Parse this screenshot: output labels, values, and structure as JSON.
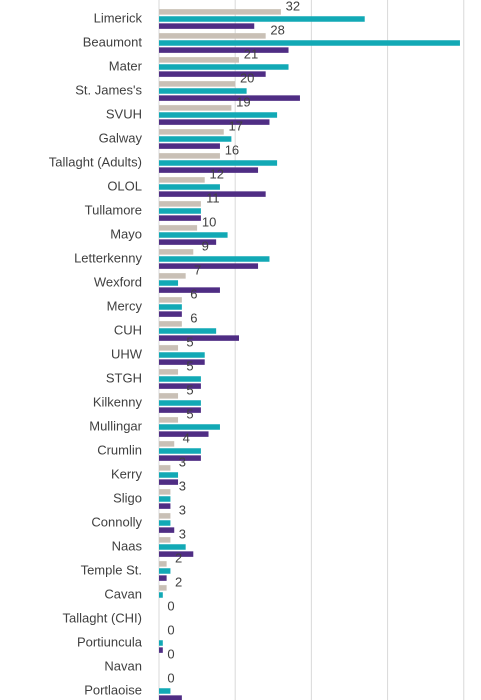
{
  "chart_data": {
    "type": "bar",
    "orientation": "horizontal",
    "categories": [
      "Limerick",
      "Beaumont",
      "Mater",
      "St. James's",
      "SVUH",
      "Galway",
      "Tallaght (Adults)",
      "OLOL",
      "Tullamore",
      "Mayo",
      "Letterkenny",
      "Wexford",
      "Mercy",
      "CUH",
      "UHW",
      "STGH",
      "Kilkenny",
      "Mullingar",
      "Crumlin",
      "Kerry",
      "Sligo",
      "Connolly",
      "Naas",
      "Temple St.",
      "Cavan",
      "Tallaght (CHI)",
      "Portiuncula",
      "Navan",
      "Portlaoise"
    ],
    "series": [
      {
        "color": "#c9c0b6",
        "values": [
          32,
          28,
          21,
          20,
          19,
          17,
          16,
          12,
          11,
          10,
          9,
          7,
          6,
          6,
          5,
          5,
          5,
          5,
          4,
          3,
          3,
          3,
          3,
          2,
          2,
          0,
          0,
          0,
          0
        ],
        "labeled": true
      },
      {
        "color": "#12a9b5",
        "values": [
          54,
          79,
          34,
          23,
          31,
          19,
          31,
          16,
          11,
          18,
          29,
          5,
          6,
          15,
          12,
          11,
          11,
          16,
          11,
          5,
          3,
          3,
          7,
          3,
          1,
          0,
          1,
          0,
          3
        ]
      },
      {
        "color": "#4f2d84",
        "values": [
          25,
          34,
          28,
          37,
          29,
          16,
          26,
          28,
          11,
          15,
          26,
          16,
          6,
          21,
          12,
          11,
          11,
          13,
          11,
          5,
          3,
          4,
          9,
          2,
          0,
          0,
          1,
          0,
          6
        ]
      }
    ],
    "xlim": [
      0,
      84
    ],
    "xticks": [
      0,
      20,
      40,
      60,
      80
    ],
    "grid": true
  }
}
